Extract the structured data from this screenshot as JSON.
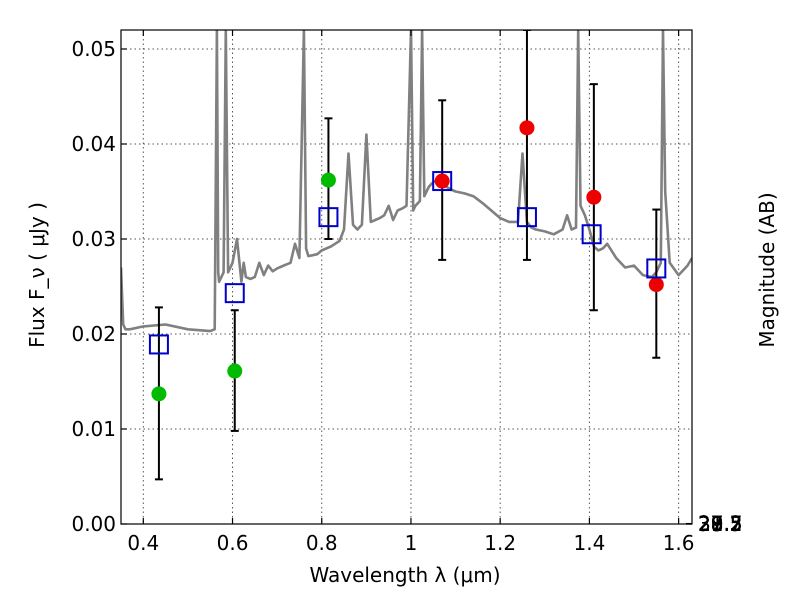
{
  "chart_data": {
    "type": "scatter",
    "xlabel": "Wavelength  λ (μm)",
    "ylabel": "Flux  F_ν  ( μJy )",
    "ylabel_right": "Magnitude (AB)",
    "xlim": [
      0.35,
      1.63
    ],
    "ylim": [
      0.0,
      0.052
    ],
    "grid": true,
    "x_ticks": [
      "0.4",
      "0.6",
      "0.8",
      "1",
      "1.2",
      "1.4",
      "1.6"
    ],
    "y_ticks": [
      "0.00",
      "0.01",
      "0.02",
      "0.03",
      "0.04",
      "0.05"
    ],
    "right_ticks": [
      "27.2",
      "27.3",
      "27.5",
      "27.7",
      "28",
      "28.2",
      "28.5",
      "29",
      "29.5",
      "30",
      "31"
    ],
    "colors": {
      "model": "#808080",
      "green_points": "#00bb00",
      "red_points": "#ee0000",
      "squares": "#0000cc",
      "errorbars": "#000000"
    },
    "series": [
      {
        "kind": "line",
        "x": [
          0.35,
          0.355,
          0.36,
          0.37,
          0.4,
          0.45,
          0.5,
          0.55,
          0.56,
          0.565,
          0.568,
          0.57,
          0.575,
          0.58,
          0.585,
          0.59,
          0.6,
          0.61,
          0.62,
          0.625,
          0.63,
          0.64,
          0.65,
          0.66,
          0.67,
          0.68,
          0.69,
          0.7,
          0.71,
          0.72,
          0.73,
          0.74,
          0.75,
          0.76,
          0.765,
          0.77,
          0.78,
          0.79,
          0.8,
          0.81,
          0.82,
          0.83,
          0.84,
          0.85,
          0.86,
          0.87,
          0.88,
          0.89,
          0.9,
          0.91,
          0.92,
          0.93,
          0.94,
          0.95,
          0.96,
          0.97,
          0.98,
          0.99,
          1.0,
          1.005,
          1.01,
          1.02,
          1.025,
          1.03,
          1.04,
          1.05,
          1.06,
          1.07,
          1.08,
          1.09,
          1.1,
          1.12,
          1.14,
          1.16,
          1.18,
          1.2,
          1.22,
          1.24,
          1.25,
          1.26,
          1.27,
          1.28,
          1.3,
          1.32,
          1.34,
          1.35,
          1.36,
          1.37,
          1.375,
          1.38,
          1.39,
          1.4,
          1.41,
          1.42,
          1.43,
          1.44,
          1.46,
          1.48,
          1.5,
          1.52,
          1.54,
          1.55,
          1.56,
          1.565,
          1.57,
          1.58,
          1.6,
          1.62,
          1.63
        ],
        "y": [
          0.027,
          0.021,
          0.0205,
          0.0205,
          0.0208,
          0.021,
          0.0205,
          0.0203,
          0.0205,
          0.052,
          0.0265,
          0.0255,
          0.026,
          0.0265,
          0.052,
          0.0265,
          0.0275,
          0.03,
          0.0255,
          0.0275,
          0.026,
          0.0258,
          0.026,
          0.0275,
          0.0262,
          0.0272,
          0.0266,
          0.0269,
          0.0271,
          0.0273,
          0.0275,
          0.0295,
          0.028,
          0.052,
          0.029,
          0.0282,
          0.0283,
          0.0284,
          0.0288,
          0.029,
          0.0292,
          0.0295,
          0.0298,
          0.031,
          0.039,
          0.0315,
          0.031,
          0.0315,
          0.041,
          0.0318,
          0.032,
          0.0322,
          0.0325,
          0.0335,
          0.032,
          0.033,
          0.0332,
          0.0335,
          0.052,
          0.033,
          0.0335,
          0.034,
          0.052,
          0.0345,
          0.0355,
          0.036,
          0.0362,
          0.0358,
          0.0355,
          0.0352,
          0.035,
          0.0348,
          0.0345,
          0.0338,
          0.033,
          0.0322,
          0.0318,
          0.0318,
          0.039,
          0.0318,
          0.0312,
          0.031,
          0.0308,
          0.0305,
          0.031,
          0.0325,
          0.031,
          0.0312,
          0.052,
          0.0335,
          0.0325,
          0.031,
          0.0292,
          0.0288,
          0.029,
          0.0295,
          0.028,
          0.027,
          0.0272,
          0.0262,
          0.026,
          0.0265,
          0.0275,
          0.052,
          0.035,
          0.0275,
          0.0262,
          0.0272,
          0.028
        ]
      },
      {
        "kind": "points",
        "marker": "circle",
        "color": "green",
        "x": [
          0.435,
          0.605,
          0.815
        ],
        "y": [
          0.0137,
          0.0161,
          0.0362
        ]
      },
      {
        "kind": "points",
        "marker": "circle",
        "color": "red",
        "x": [
          1.07,
          1.26,
          1.41,
          1.55
        ],
        "y": [
          0.0361,
          0.0417,
          0.0344,
          0.0252
        ]
      },
      {
        "kind": "points",
        "marker": "square",
        "color": "blue",
        "x": [
          0.435,
          0.605,
          0.815,
          1.07,
          1.26,
          1.405,
          1.55
        ],
        "y": [
          0.0189,
          0.0243,
          0.0323,
          0.0361,
          0.0323,
          0.0305,
          0.0269
        ]
      },
      {
        "kind": "errorbars",
        "x": [
          0.435,
          0.605,
          0.815,
          1.07,
          1.26,
          1.41,
          1.55
        ],
        "ylow": [
          0.0047,
          0.0098,
          0.03,
          0.0278,
          0.0278,
          0.0225,
          0.0175
        ],
        "yhigh": [
          0.0228,
          0.0225,
          0.0427,
          0.0446,
          0.052,
          0.0463,
          0.0331
        ]
      }
    ]
  }
}
